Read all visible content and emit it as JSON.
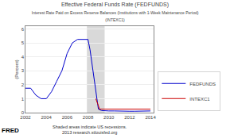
{
  "chart_data": {
    "type": "line",
    "title": "Effective Federal Funds Rate (FEDFUNDS)",
    "subtitle": [
      "Interest Rate Paid on Excess Reserve Balances (Institutions with 1-Week Maintenance Period)",
      "(INTEXC1)"
    ],
    "y_label": "(Percent)",
    "annotations": [
      "Shaded areas indicate US recessions.",
      "2013 research.stlouisfed.org",
      "FRED"
    ],
    "shaded": [
      {
        "start": 2007.9,
        "end": 2009.6,
        "color": "#c0c0c0"
      }
    ],
    "xlim": [
      2002.0,
      2014.3
    ],
    "xticks": [
      2002,
      2004,
      2006,
      2008,
      2010,
      2012,
      2014
    ],
    "ylim": [
      0,
      6.2
    ],
    "yticks": [
      0,
      1,
      2,
      3,
      4,
      5,
      6
    ],
    "grid": true,
    "legend": "right",
    "series": [
      {
        "name": "FEDFUNDS",
        "color": "#0000cc",
        "x": [
          2002.0,
          2002.5,
          2003.0,
          2003.5,
          2004.0,
          2004.5,
          2005.0,
          2005.5,
          2006.0,
          2006.5,
          2007.0,
          2007.5,
          2008.0,
          2008.2,
          2008.5,
          2008.8,
          2009.0,
          2009.3,
          2009.6,
          2010.0,
          2010.5,
          2011.0,
          2011.5,
          2012.0,
          2012.5,
          2013.0,
          2013.5,
          2014.0
        ],
        "values": [
          1.75,
          1.75,
          1.25,
          1.0,
          1.0,
          1.5,
          2.25,
          3.0,
          4.25,
          5.0,
          5.25,
          5.25,
          5.25,
          4.5,
          3.0,
          1.5,
          0.25,
          0.15,
          0.12,
          0.12,
          0.12,
          0.1,
          0.1,
          0.1,
          0.1,
          0.12,
          0.12,
          0.12
        ]
      },
      {
        "name": "INTEXC1",
        "color": "#cc0000",
        "x": [
          2008.75,
          2008.9,
          2009.0,
          2009.1,
          2009.3,
          2009.6,
          2010.0,
          2010.5,
          2011.0,
          2011.5,
          2012.0,
          2012.5,
          2013.0,
          2013.5,
          2014.0
        ],
        "values": [
          1.0,
          0.75,
          0.5,
          0.25,
          0.25,
          0.25,
          0.25,
          0.25,
          0.25,
          0.25,
          0.25,
          0.25,
          0.25,
          0.25,
          0.25
        ]
      }
    ]
  }
}
